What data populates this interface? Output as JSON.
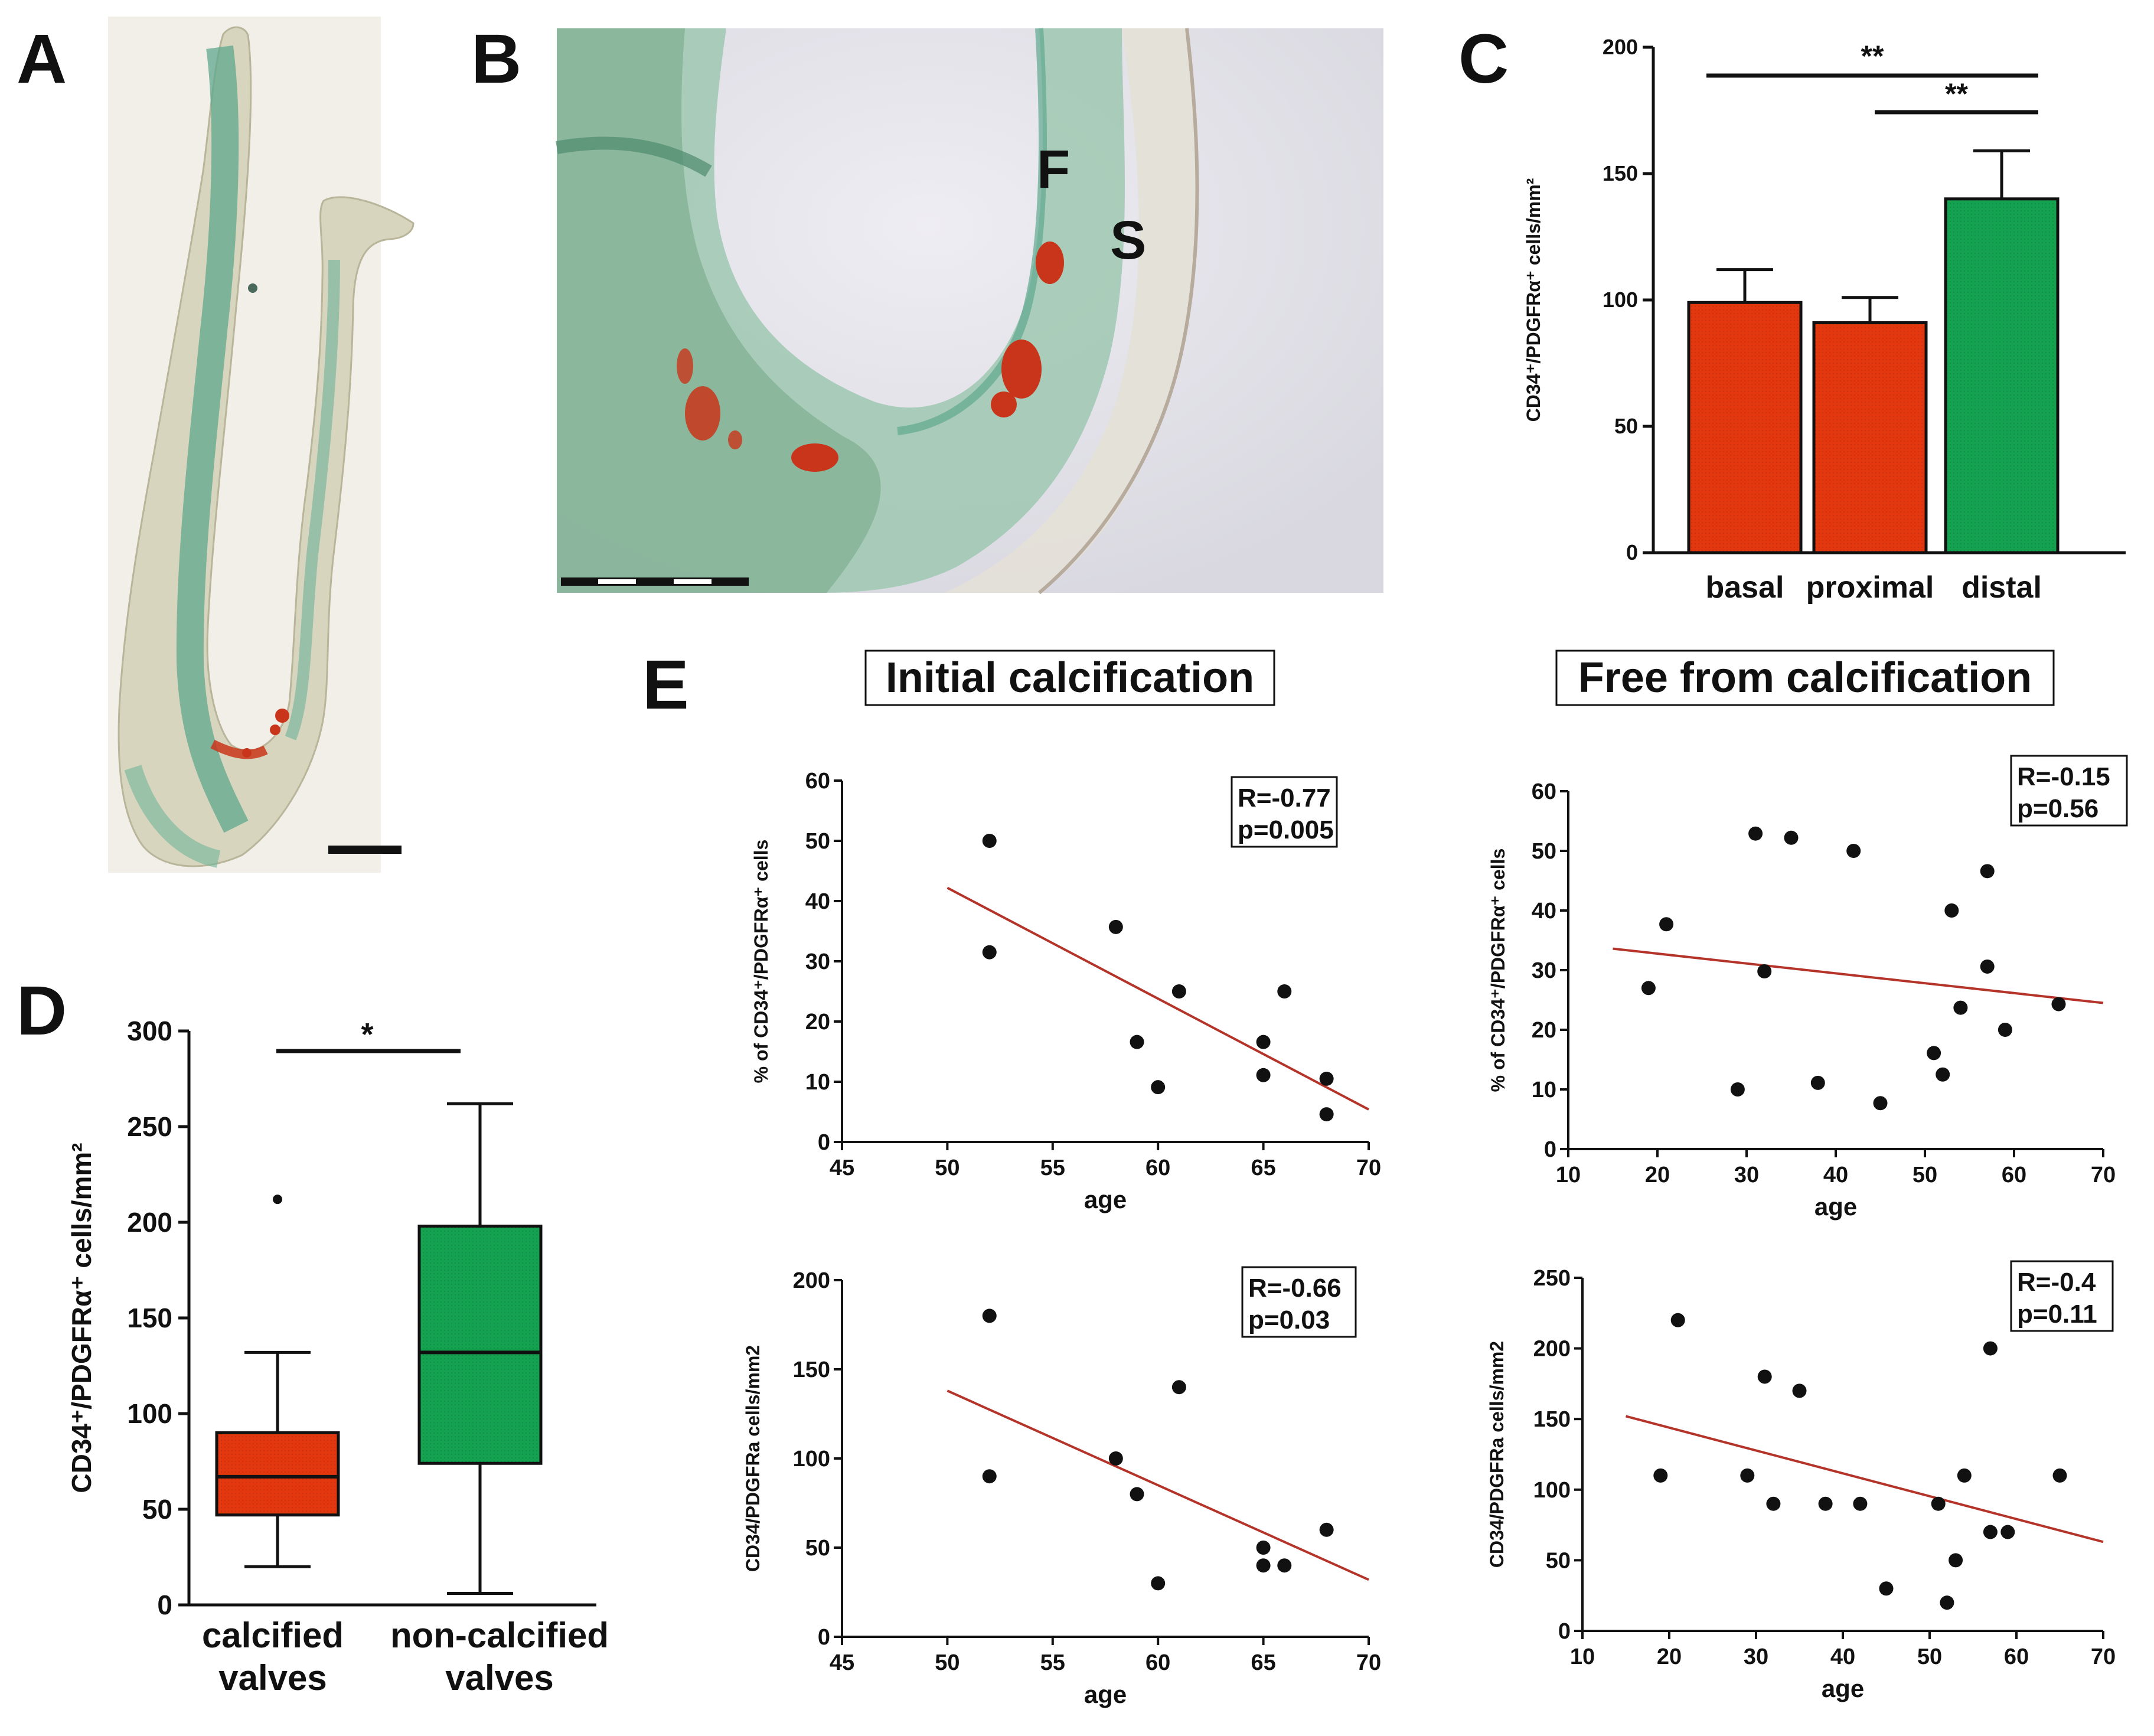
{
  "colors": {
    "red": "#e3380f",
    "green": "#14a150",
    "trend": "#b5342a",
    "tissue_green": "#6fb59a",
    "calcium_red": "#c9351a"
  },
  "panels": {
    "A": {
      "letter": "A"
    },
    "B": {
      "letter": "B",
      "label_F": "F",
      "label_S": "S"
    },
    "E": {
      "letter": "E"
    }
  },
  "chart_data": [
    {
      "id": "C",
      "letter": "C",
      "type": "bar",
      "categories": [
        "basal",
        "proximal",
        "distal"
      ],
      "values": [
        99,
        91,
        140
      ],
      "errors": [
        13,
        10,
        19
      ],
      "bar_colors": [
        "#e3380f",
        "#e3380f",
        "#14a150"
      ],
      "ylabel": "CD34⁺/PDGFRα⁺ cells/mm²",
      "ylim": [
        0,
        200
      ],
      "yticks": [
        0,
        50,
        100,
        150,
        200
      ],
      "significance": [
        {
          "from": "basal",
          "to": "distal",
          "label": "**"
        },
        {
          "from": "proximal",
          "to": "distal",
          "label": "**"
        }
      ]
    },
    {
      "id": "D",
      "letter": "D",
      "type": "box",
      "categories": [
        "calcified valves",
        "non-calcified valves"
      ],
      "category_lines": [
        [
          "calcified",
          "valves"
        ],
        [
          "non-calcified",
          "valves"
        ]
      ],
      "boxes": [
        {
          "min": 20,
          "q1": 47,
          "median": 67,
          "q3": 90,
          "max": 132,
          "outliers": [
            212
          ],
          "color": "#e3380f"
        },
        {
          "min": 6,
          "q1": 74,
          "median": 132,
          "q3": 198,
          "max": 262,
          "outliers": [],
          "color": "#14a150"
        }
      ],
      "ylabel": "CD34⁺/PDGFRα⁺ cells/mm²",
      "ylim": [
        0,
        300
      ],
      "yticks": [
        0,
        50,
        100,
        150,
        200,
        250,
        300
      ],
      "significance": [
        {
          "from": "calcified valves",
          "to": "non-calcified valves",
          "label": "*"
        }
      ]
    },
    {
      "id": "E1",
      "type": "scatter",
      "title": "Initial calcification",
      "xlabel": "age",
      "ylabel": "% of CD34⁺/PDGFRα⁺ cells",
      "xlim": [
        45,
        70
      ],
      "xticks": [
        45,
        50,
        55,
        60,
        65,
        70
      ],
      "ylim": [
        0,
        60
      ],
      "yticks": [
        0,
        10,
        20,
        30,
        40,
        50,
        60
      ],
      "points": [
        [
          52,
          50
        ],
        [
          52,
          31.5
        ],
        [
          58,
          35.7
        ],
        [
          59,
          16.6
        ],
        [
          60,
          9.1
        ],
        [
          61,
          25
        ],
        [
          65,
          16.6
        ],
        [
          65,
          11.1
        ],
        [
          66,
          25
        ],
        [
          68,
          10.5
        ],
        [
          68,
          4.6
        ]
      ],
      "trend": {
        "x1": 50,
        "y1": 42.2,
        "x2": 70,
        "y2": 5.4
      },
      "stat_R": "R=-0.77",
      "stat_p": "p=0.005"
    },
    {
      "id": "E2",
      "type": "scatter",
      "title": "Free from calcification",
      "xlabel": "age",
      "ylabel": "% of CD34⁺/PDGFRα⁺ cells",
      "xlim": [
        10,
        70
      ],
      "xticks": [
        10,
        20,
        30,
        40,
        50,
        60,
        70
      ],
      "ylim": [
        0,
        60
      ],
      "yticks": [
        0,
        10,
        20,
        30,
        40,
        50,
        60
      ],
      "points": [
        [
          19,
          27
        ],
        [
          21,
          37.7
        ],
        [
          29,
          10
        ],
        [
          31,
          52.9
        ],
        [
          32,
          29.8
        ],
        [
          35,
          52.2
        ],
        [
          38,
          11.1
        ],
        [
          42,
          50
        ],
        [
          45,
          7.7
        ],
        [
          51,
          16.1
        ],
        [
          52,
          12.5
        ],
        [
          53,
          40
        ],
        [
          54,
          23.7
        ],
        [
          57,
          46.6
        ],
        [
          57,
          30.6
        ],
        [
          59,
          20
        ],
        [
          65,
          24.3
        ]
      ],
      "trend": {
        "x1": 15,
        "y1": 33.6,
        "x2": 70,
        "y2": 24.5
      },
      "stat_R": "R=-0.15",
      "stat_p": "p=0.56"
    },
    {
      "id": "E3",
      "type": "scatter",
      "xlabel": "age",
      "ylabel": "CD34/PDGFRa cells/mm2",
      "xlim": [
        45,
        70
      ],
      "xticks": [
        45,
        50,
        55,
        60,
        65,
        70
      ],
      "ylim": [
        0,
        200
      ],
      "yticks": [
        0,
        50,
        100,
        150,
        200
      ],
      "points": [
        [
          52,
          180
        ],
        [
          52,
          90
        ],
        [
          58,
          100
        ],
        [
          59,
          80
        ],
        [
          60,
          30
        ],
        [
          61,
          140
        ],
        [
          65,
          50
        ],
        [
          65,
          40
        ],
        [
          66,
          40
        ],
        [
          68,
          60
        ]
      ],
      "trend": {
        "x1": 50,
        "y1": 138,
        "x2": 70,
        "y2": 32
      },
      "stat_R": "R=-0.66",
      "stat_p": "p=0.03"
    },
    {
      "id": "E4",
      "type": "scatter",
      "xlabel": "age",
      "ylabel": "CD34/PDGFRa cells/mm2",
      "xlim": [
        10,
        70
      ],
      "xticks": [
        10,
        20,
        30,
        40,
        50,
        60,
        70
      ],
      "ylim": [
        0,
        250
      ],
      "yticks": [
        0,
        50,
        100,
        150,
        200,
        250
      ],
      "points": [
        [
          19,
          110
        ],
        [
          21,
          220
        ],
        [
          29,
          110
        ],
        [
          31,
          180
        ],
        [
          32,
          90
        ],
        [
          35,
          170
        ],
        [
          38,
          90
        ],
        [
          42,
          90
        ],
        [
          45,
          30
        ],
        [
          51,
          90
        ],
        [
          52,
          20
        ],
        [
          53,
          50
        ],
        [
          54,
          110
        ],
        [
          57,
          200
        ],
        [
          57,
          70
        ],
        [
          59,
          70
        ],
        [
          65,
          110
        ]
      ],
      "trend": {
        "x1": 15,
        "y1": 152,
        "x2": 70,
        "y2": 63
      },
      "stat_R": "R=-0.4",
      "stat_p": "p=0.11"
    }
  ]
}
